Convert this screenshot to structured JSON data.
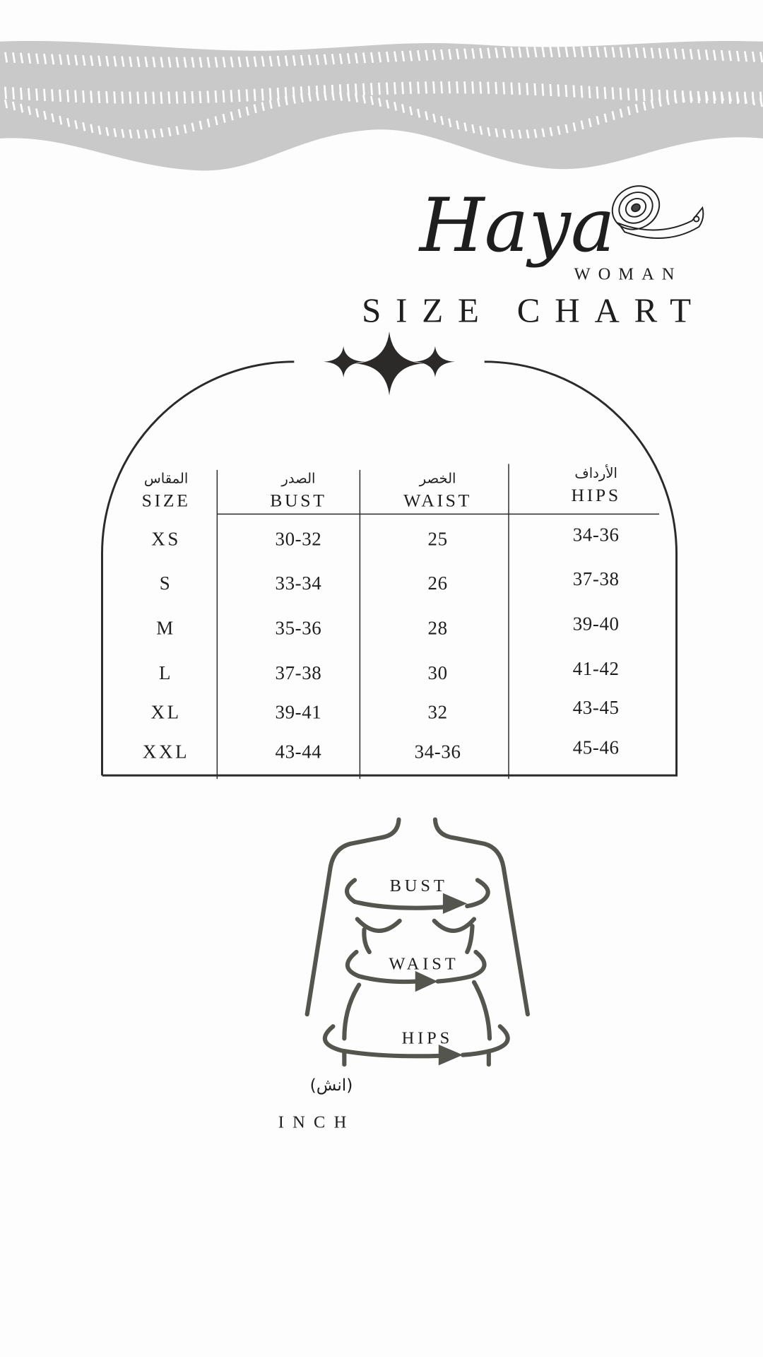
{
  "colors": {
    "band": "#c8c9c8",
    "ink": "#2b2a28",
    "figure": "#55554f",
    "background": "#fdfdfd"
  },
  "logo": {
    "script": "Haya",
    "subtitle": "WOMAN",
    "icon": "measuring-tape-icon"
  },
  "title": "SIZE CHART",
  "ornament": "sparkle-stars-icon",
  "table": {
    "headers": [
      {
        "ar": "المقاس",
        "en": "SIZE"
      },
      {
        "ar": "الصدر",
        "en": "BUST"
      },
      {
        "ar": "الخصر",
        "en": "WAIST"
      },
      {
        "ar": "الأرداف",
        "en": "HIPS"
      }
    ],
    "rows": [
      [
        "XS",
        "30-32",
        "25",
        "34-36"
      ],
      [
        "S",
        "33-34",
        "26",
        "37-38"
      ],
      [
        "M",
        "35-36",
        "28",
        "39-40"
      ],
      [
        "L",
        "37-38",
        "30",
        "41-42"
      ],
      [
        "XL",
        "39-41",
        "32",
        "43-45"
      ],
      [
        "XXL",
        "43-44",
        "34-36",
        "45-46"
      ]
    ]
  },
  "diagram": {
    "bust": "BUST",
    "waist": "WAIST",
    "hips": "HIPS"
  },
  "unit": {
    "ar": "(انش)",
    "en": "INCH"
  }
}
